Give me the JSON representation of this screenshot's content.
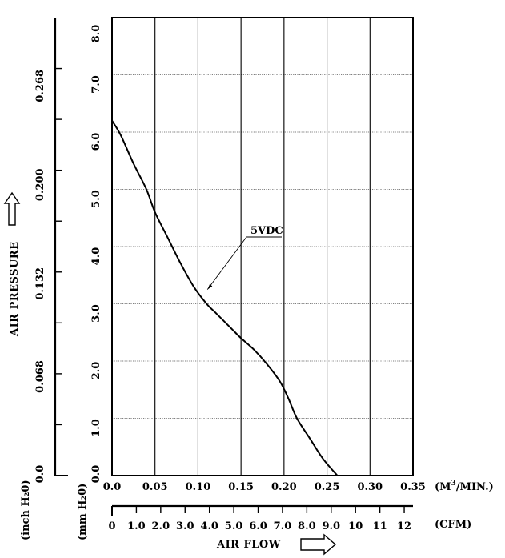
{
  "chart_data": {
    "type": "line",
    "ylabel": "AIR PRESSURE",
    "xlabel": "AIR FLOW",
    "x_unit": "(M³/MIN.)",
    "x_unit_base": "(M",
    "x_unit_sup": "3",
    "x_unit_tail": "/MIN.)",
    "cfm_unit": "(CFM)",
    "mm_unit": "(mm H₂0)",
    "inch_unit": "(inch H₂0)",
    "xlim": [
      0,
      0.35
    ],
    "ylim": [
      0,
      8.0
    ],
    "x_ticks": [
      "0.0",
      "0.05",
      "0.10",
      "0.15",
      "0.20",
      "0.25",
      "0.30",
      "0.35"
    ],
    "x_tick_values": [
      0,
      0.05,
      0.1,
      0.15,
      0.2,
      0.25,
      0.3,
      0.35
    ],
    "y_ticks": [
      "0.0",
      "1.0",
      "2.0",
      "3.0",
      "4.0",
      "5.0",
      "6.0",
      "7.0",
      "8.0"
    ],
    "y_tick_values": [
      0,
      1,
      2,
      3,
      4,
      5,
      6,
      7,
      8
    ],
    "inch_ticks": [
      "0.0",
      "0.068",
      "0.132",
      "0.200",
      "0.268"
    ],
    "inch_tick_values": [
      0,
      0.068,
      0.132,
      0.2,
      0.268
    ],
    "cfm_ticks": [
      "0",
      "1.0",
      "2.0",
      "3.0",
      "4.0",
      "5.0",
      "6.0",
      "7.0",
      "8.0",
      "9.0",
      "10",
      "11",
      "12"
    ],
    "cfm_tick_values": [
      0,
      1,
      2,
      3,
      4,
      5,
      6,
      7,
      8,
      9,
      10,
      11,
      12
    ],
    "grid": true,
    "series": [
      {
        "name": "5VDC",
        "x": [
          0,
          0.01,
          0.025,
          0.04,
          0.05,
          0.065,
          0.08,
          0.095,
          0.11,
          0.12,
          0.13,
          0.14,
          0.15,
          0.165,
          0.18,
          0.195,
          0.205,
          0.215,
          0.23,
          0.245,
          0.262
        ],
        "y": [
          6.2,
          5.95,
          5.45,
          5.0,
          4.6,
          4.15,
          3.7,
          3.3,
          3.0,
          2.85,
          2.7,
          2.55,
          2.4,
          2.2,
          1.95,
          1.65,
          1.35,
          1.0,
          0.65,
          0.3,
          0.0
        ],
        "label_x": 0.111,
        "label_y": 3.25
      }
    ]
  }
}
